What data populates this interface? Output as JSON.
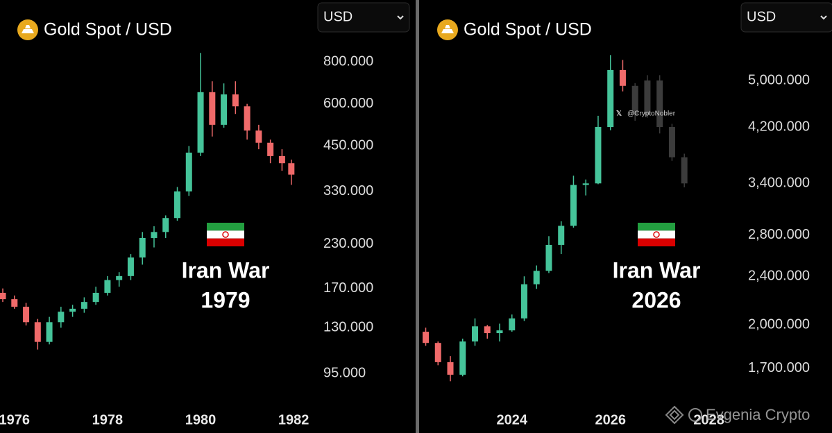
{
  "chart_data": [
    {
      "type": "candlestick",
      "title": "Gold Spot / USD",
      "currency": "USD",
      "annotation": [
        "Iran War",
        "1979"
      ],
      "log_y": true,
      "xlim": [
        1975.69,
        1982.4
      ],
      "xticks": [
        1976,
        1978,
        1980,
        1982
      ],
      "ylim": [
        78,
        1220
      ],
      "yticks": [
        {
          "value": 800,
          "label": "800.000"
        },
        {
          "value": 600,
          "label": "600.000"
        },
        {
          "value": 450,
          "label": "450.000"
        },
        {
          "value": 330,
          "label": "330.000"
        },
        {
          "value": 230,
          "label": "230.000"
        },
        {
          "value": 170,
          "label": "170.000"
        },
        {
          "value": 130,
          "label": "130.000"
        },
        {
          "value": 95,
          "label": "95.000"
        }
      ],
      "up_color": "#45c49a",
      "down_color": "#f06a6a",
      "series": [
        {
          "x": [
            1975.75,
            1976.0,
            1976.25,
            1976.5,
            1976.75,
            1977.0,
            1977.25,
            1977.5,
            1977.75,
            1978.0,
            1978.25,
            1978.5,
            1978.75,
            1979.0,
            1979.25,
            1979.5,
            1979.75,
            1980.0,
            1980.25,
            1980.5,
            1980.75,
            1981.0,
            1981.25,
            1981.5,
            1981.75,
            1981.95
          ],
          "open": [
            165,
            158,
            150,
            135,
            118,
            135,
            145,
            148,
            155,
            165,
            180,
            185,
            210,
            240,
            250,
            275,
            330,
            430,
            650,
            520,
            640,
            590,
            500,
            460,
            420,
            400
          ],
          "high": [
            170,
            162,
            154,
            138,
            140,
            150,
            152,
            160,
            172,
            185,
            190,
            215,
            250,
            260,
            280,
            340,
            450,
            850,
            700,
            690,
            700,
            600,
            520,
            470,
            440,
            410
          ],
          "low": [
            155,
            148,
            132,
            112,
            116,
            130,
            140,
            144,
            152,
            162,
            172,
            180,
            200,
            225,
            240,
            270,
            320,
            420,
            480,
            510,
            560,
            470,
            440,
            400,
            380,
            345
          ],
          "close": [
            158,
            150,
            135,
            118,
            135,
            145,
            148,
            155,
            165,
            180,
            185,
            210,
            240,
            250,
            275,
            330,
            430,
            650,
            520,
            640,
            590,
            500,
            460,
            420,
            400,
            370
          ]
        }
      ]
    },
    {
      "type": "candlestick",
      "title": "Gold Spot / USD",
      "currency": "USD",
      "annotation": [
        "Iran War",
        "2026"
      ],
      "log_y": true,
      "xlim": [
        2022.13,
        2028.54
      ],
      "xticks": [
        2024,
        2026,
        2028
      ],
      "ylim": [
        1496,
        6760
      ],
      "yticks": [
        {
          "value": 5000,
          "label": "5,000.000"
        },
        {
          "value": 4200,
          "label": "4,200.000"
        },
        {
          "value": 3400,
          "label": "3,400.000"
        },
        {
          "value": 2800,
          "label": "2,800.000"
        },
        {
          "value": 2400,
          "label": "2,400.000"
        },
        {
          "value": 2000,
          "label": "2,000.000"
        },
        {
          "value": 1700,
          "label": "1,700.000"
        }
      ],
      "up_color": "#45c49a",
      "down_color": "#f06a6a",
      "watermarks": [
        "@CryptoNobler",
        "Evgenia Crypto"
      ],
      "series": [
        {
          "x": [
            2022.25,
            2022.5,
            2022.75,
            2023.0,
            2023.25,
            2023.5,
            2023.75,
            2024.0,
            2024.25,
            2024.5,
            2024.75,
            2025.0,
            2025.25,
            2025.5,
            2025.75,
            2026.0,
            2026.25
          ],
          "open": [
            1950,
            1870,
            1740,
            1660,
            1880,
            1990,
            1940,
            1960,
            2050,
            2330,
            2450,
            2700,
            2900,
            3380,
            3400,
            4200,
            5200
          ],
          "high": [
            1980,
            1880,
            1780,
            1900,
            2050,
            2000,
            2010,
            2080,
            2400,
            2500,
            2790,
            2950,
            3500,
            3450,
            4380,
            5500,
            5400
          ],
          "low": [
            1850,
            1720,
            1620,
            1650,
            1850,
            1900,
            1880,
            1950,
            2030,
            2290,
            2430,
            2610,
            2880,
            3250,
            3390,
            4150,
            4800
          ],
          "close": [
            1870,
            1740,
            1660,
            1880,
            1990,
            1940,
            1960,
            2050,
            2330,
            2450,
            2700,
            2900,
            3380,
            3400,
            4200,
            5200,
            4900
          ]
        },
        {
          "color": "#3c3c3c",
          "x": [
            2026.5,
            2026.75,
            2027.0,
            2027.25,
            2027.5
          ],
          "open": [
            4900,
            4400,
            5000,
            4200,
            3750
          ],
          "high": [
            4950,
            5100,
            5100,
            4250,
            3800
          ],
          "low": [
            4300,
            4350,
            4100,
            3700,
            3350
          ],
          "close": [
            4400,
            5000,
            4200,
            3750,
            3400
          ]
        }
      ]
    }
  ]
}
